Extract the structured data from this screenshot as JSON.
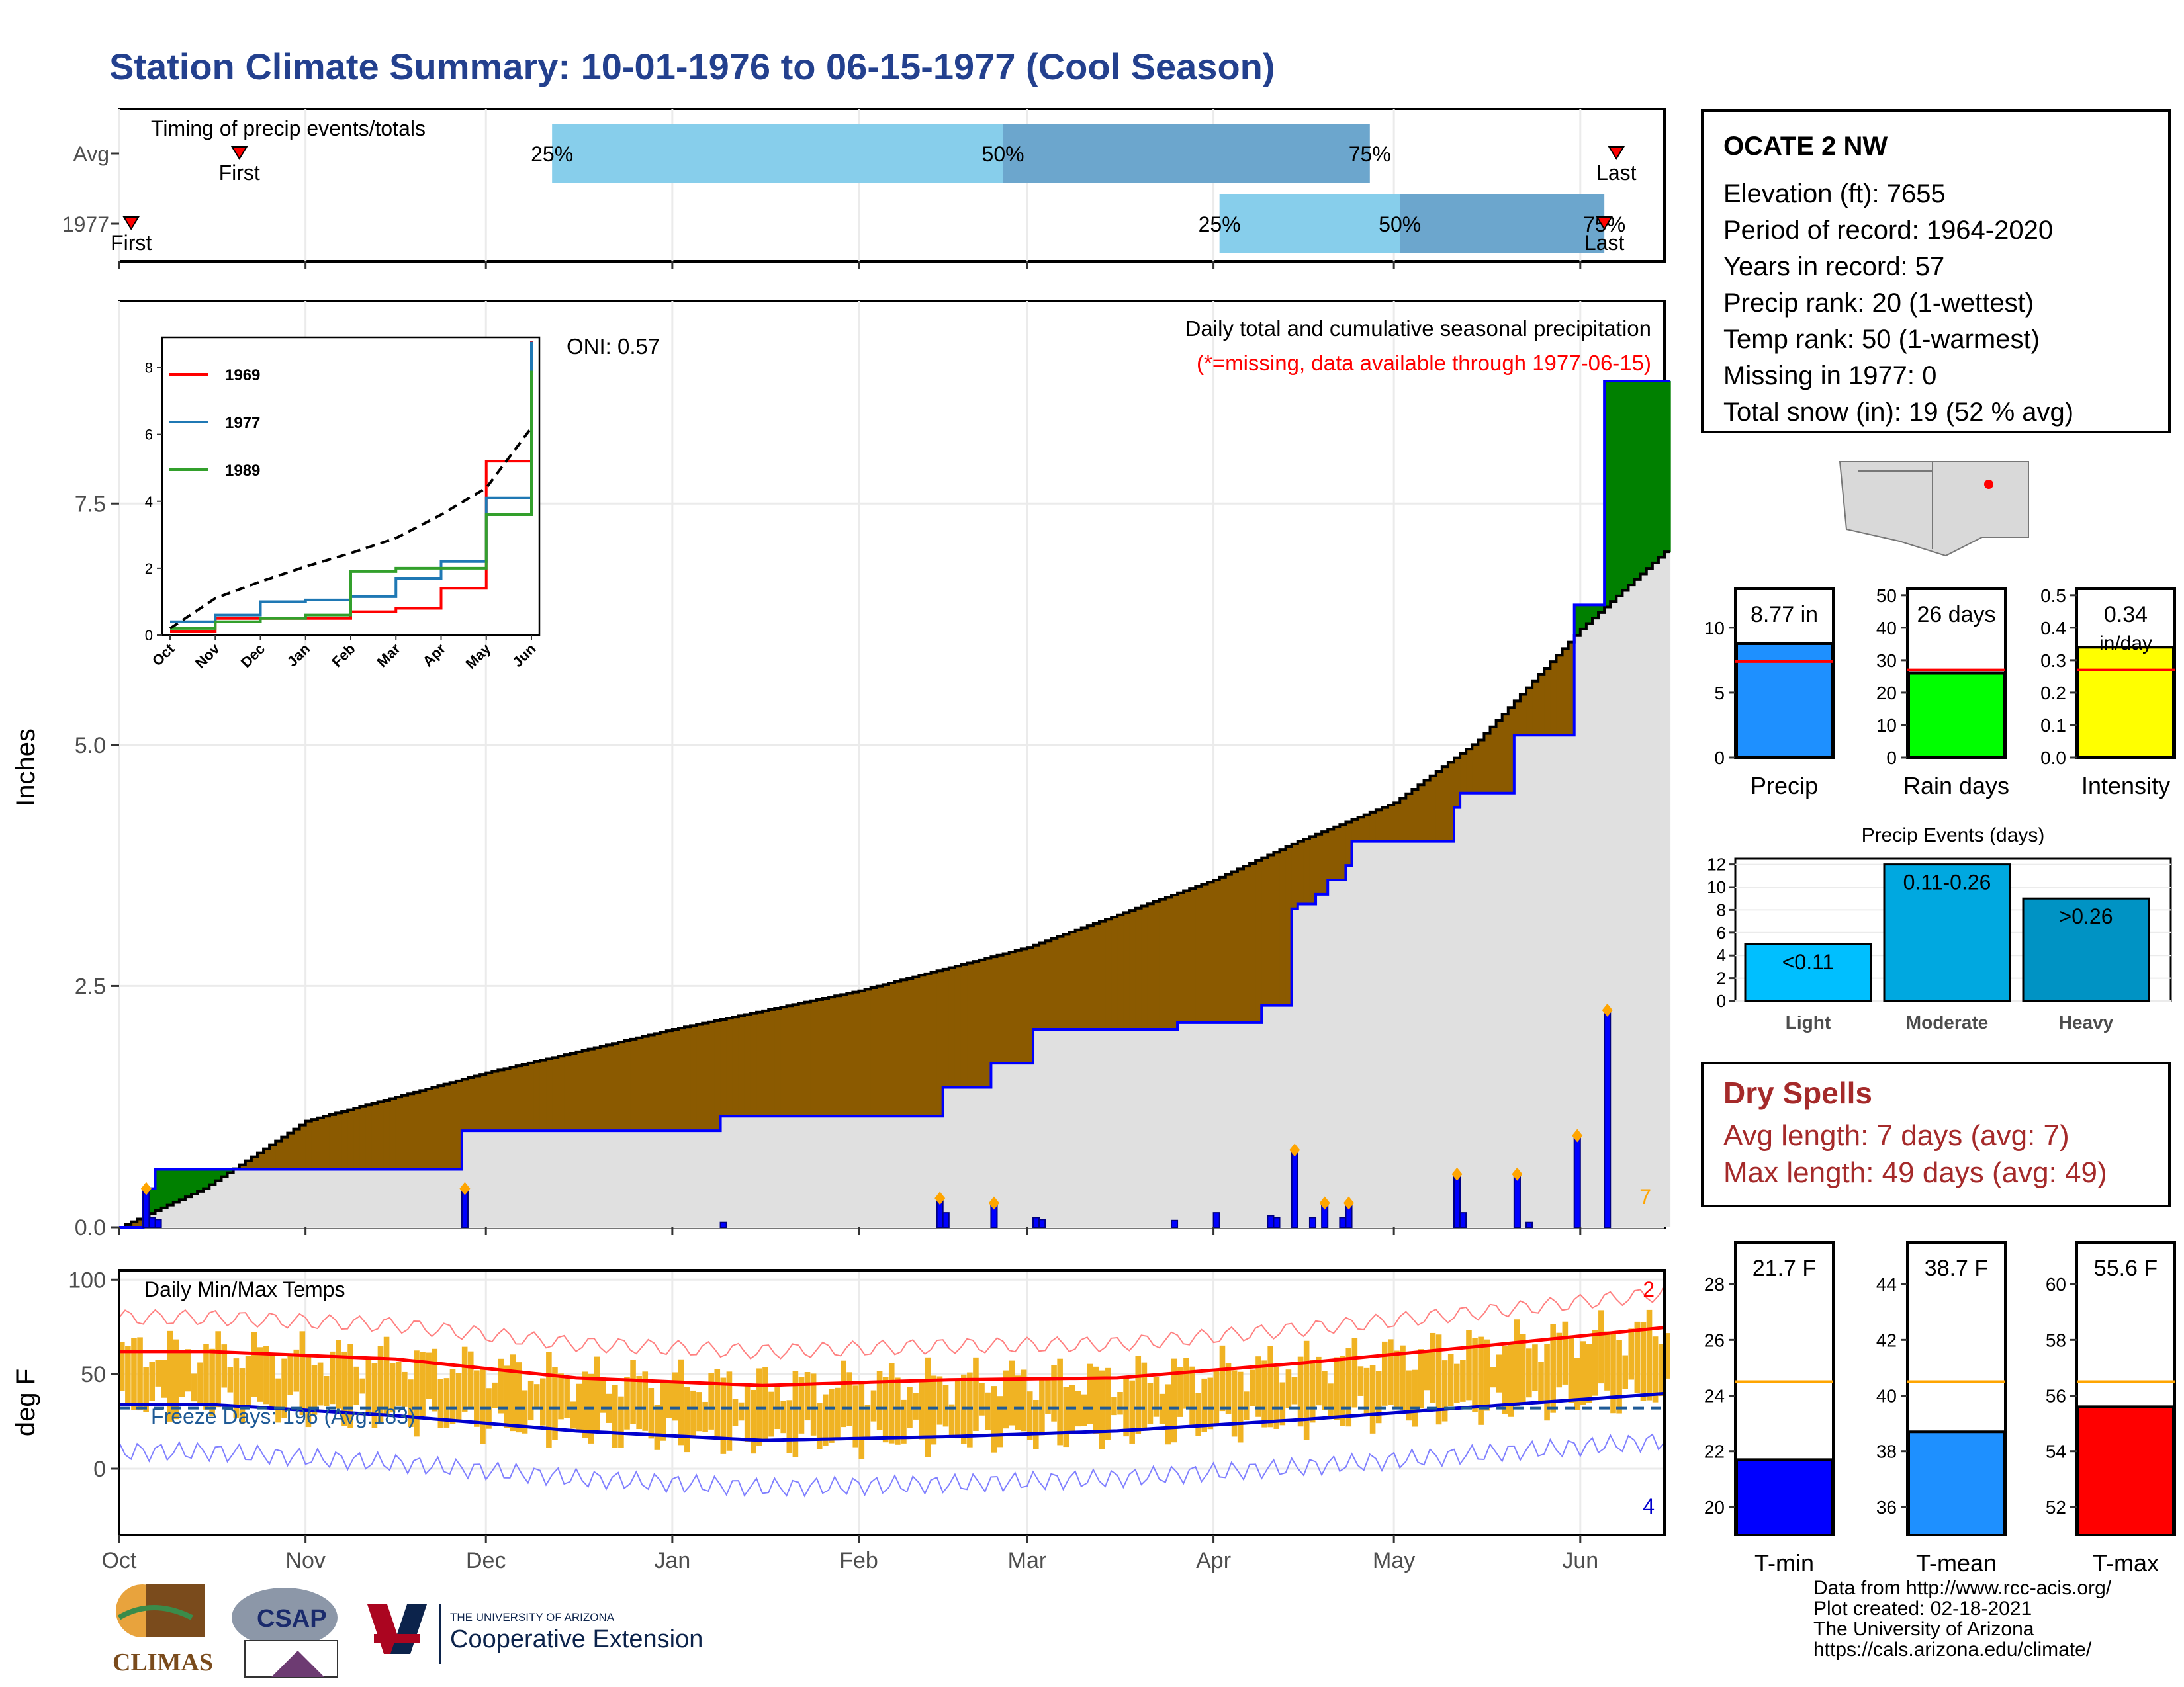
{
  "title": "Station Climate Summary: 10-01-1976 to 06-15-1977 (Cool Season)",
  "colors": {
    "title": "#23408e",
    "brown_fill": "#8b5a00",
    "green_fill": "#008000",
    "gray_fill": "#e0e0e0",
    "daily_bar": "#0000ff",
    "light_blue": "#87ceeb",
    "mid_blue": "#6ca6cd",
    "temp_bar": "#f0b323",
    "max_line": "#ff0000",
    "min_line": "#0000cd",
    "dry_text": "#a52a2a"
  },
  "timing": {
    "title": "Timing of precip events/totals",
    "rows": [
      {
        "label": "Avg",
        "first_label": "First",
        "last_label": "Last",
        "first": "Oct 21",
        "last": "Jun 07",
        "p25": "Dec 12",
        "p50": "Feb 25",
        "p75": "Apr 27",
        "p25_label": "25%",
        "p50_label": "50%",
        "p75_label": "75%"
      },
      {
        "label": "1977",
        "first_label": "First",
        "last_label": "Last",
        "first": "Oct 03",
        "last": "Jun 05",
        "p25": "Apr 02",
        "p50": "May 02",
        "p75": "Jun 05",
        "p25_label": "25%",
        "p50_label": "50%",
        "p75_label": "75%"
      }
    ]
  },
  "precip_panel": {
    "title": "Daily total and cumulative seasonal precipitation",
    "note": "(*=missing, data available through 1977-06-15)",
    "oni": "ONI: 0.57",
    "ylabel": "Inches",
    "yticks": [
      "0.0",
      "2.5",
      "5.0",
      "7.5"
    ],
    "corner_count": "7"
  },
  "inset": {
    "yticks": [
      "0",
      "2",
      "4",
      "6",
      "8"
    ],
    "xticks": [
      "Oct",
      "Nov",
      "Dec",
      "Jan",
      "Feb",
      "Mar",
      "Apr",
      "May",
      "Jun"
    ],
    "legend": [
      "1969",
      "1977",
      "1989"
    ]
  },
  "temp_panel": {
    "title": "Daily Min/Max Temps",
    "freeze": "Freeze Days: 196 (Avg:183)",
    "ylabel": "deg F",
    "yticks": [
      "0",
      "50",
      "100"
    ],
    "max_count": "2",
    "min_count": "4"
  },
  "months": [
    "Oct",
    "Nov",
    "Dec",
    "Jan",
    "Feb",
    "Mar",
    "Apr",
    "May",
    "Jun"
  ],
  "station": {
    "name": "OCATE 2 NW",
    "elevation": "Elevation (ft): 7655",
    "period": "Period of record: 1964-2020",
    "years": "Years in record: 57",
    "precip_rank": "Precip rank: 20 (1-wettest)",
    "temp_rank": "Temp rank: 50 (1-warmest)",
    "missing": "Missing in 1977: 0",
    "snow": "Total snow (in): 19 (52 % avg)"
  },
  "precip_bars": [
    {
      "label": "Precip",
      "value_label": "8.77 in",
      "yticks": [
        "0",
        "5",
        "10"
      ],
      "color": "#1e90ff"
    },
    {
      "label": "Rain days",
      "value_label": "26 days",
      "yticks": [
        "0",
        "10",
        "20",
        "30",
        "40",
        "50"
      ],
      "color": "#00ff00"
    },
    {
      "label": "Intensity",
      "value_label": "0.34 in/day",
      "yticks": [
        "0.0",
        "0.1",
        "0.2",
        "0.3",
        "0.4",
        "0.5"
      ],
      "color": "#ffff00"
    }
  ],
  "events": {
    "title": "Precip Events (days)",
    "yticks": [
      "0",
      "2",
      "4",
      "6",
      "8",
      "10",
      "12"
    ],
    "categories": [
      "Light",
      "Moderate",
      "Heavy"
    ],
    "bar_labels": [
      "<0.11",
      "0.11-0.26",
      ">0.26"
    ]
  },
  "dry_spells": {
    "title": "Dry Spells",
    "avg": "Avg length: 7 days (avg: 7)",
    "max": "Max length: 49 days (avg: 49)"
  },
  "temp_bars": [
    {
      "label": "T-min",
      "value_label": "21.7 F",
      "yticks": [
        "20",
        "22",
        "24",
        "26",
        "28"
      ],
      "color": "#0000ff"
    },
    {
      "label": "T-mean",
      "value_label": "38.7 F",
      "yticks": [
        "36",
        "38",
        "40",
        "42",
        "44"
      ],
      "color": "#1e90ff"
    },
    {
      "label": "T-max",
      "value_label": "55.6 F",
      "yticks": [
        "52",
        "54",
        "56",
        "58",
        "60"
      ],
      "color": "#ff0000"
    }
  ],
  "footer": [
    "Data from http://www.rcc-acis.org/",
    "Plot created: 02-18-2021",
    "The University of Arizona",
    "https://cals.arizona.edu/climate/"
  ],
  "logos": {
    "climas": "CLIMAS",
    "csap": "CSAP",
    "ua_line1": "THE UNIVERSITY OF ARIZONA",
    "ua_line2": "Cooperative Extension"
  },
  "chart_data": [
    {
      "type": "area",
      "title": "Daily total and cumulative seasonal precipitation",
      "ylabel": "Inches",
      "ylim": [
        0,
        9.6
      ],
      "x_range": [
        "1976-10-01",
        "1977-06-15"
      ],
      "series": [
        {
          "name": "cumulative 1977",
          "points": [
            [
              "1976-10-01",
              0
            ],
            [
              "1976-10-05",
              0.4
            ],
            [
              "1976-10-07",
              0.6
            ],
            [
              "1976-11-26",
              0.6
            ],
            [
              "1976-11-27",
              1.0
            ],
            [
              "1977-01-08",
              1.0
            ],
            [
              "1977-01-09",
              1.15
            ],
            [
              "1977-02-14",
              1.15
            ],
            [
              "1977-02-15",
              1.45
            ],
            [
              "1977-02-22",
              1.45
            ],
            [
              "1977-02-23",
              1.7
            ],
            [
              "1977-03-01",
              1.7
            ],
            [
              "1977-03-02",
              2.05
            ],
            [
              "1977-03-25",
              2.05
            ],
            [
              "1977-03-26",
              2.12
            ],
            [
              "1977-04-08",
              2.12
            ],
            [
              "1977-04-09",
              2.3
            ],
            [
              "1977-04-13",
              2.3
            ],
            [
              "1977-04-14",
              3.3
            ],
            [
              "1977-04-15",
              3.35
            ],
            [
              "1977-04-18",
              3.45
            ],
            [
              "1977-04-20",
              3.6
            ],
            [
              "1977-04-23",
              3.75
            ],
            [
              "1977-04-24",
              4.0
            ],
            [
              "1977-05-10",
              4.0
            ],
            [
              "1977-05-11",
              4.35
            ],
            [
              "1977-05-12",
              4.5
            ],
            [
              "1977-05-20",
              4.5
            ],
            [
              "1977-05-21",
              5.1
            ],
            [
              "1977-05-30",
              5.1
            ],
            [
              "1977-05-31",
              6.45
            ],
            [
              "1977-06-04",
              6.45
            ],
            [
              "1977-06-05",
              8.77
            ],
            [
              "1977-06-15",
              8.77
            ]
          ]
        },
        {
          "name": "average cumulative",
          "points": [
            [
              "1976-10-01",
              0
            ],
            [
              "1976-10-15",
              0.4
            ],
            [
              "1976-11-01",
              1.1
            ],
            [
              "1976-12-01",
              1.6
            ],
            [
              "1977-01-01",
              2.05
            ],
            [
              "1977-02-01",
              2.45
            ],
            [
              "1977-03-01",
              2.9
            ],
            [
              "1977-04-01",
              3.6
            ],
            [
              "1977-04-15",
              4.0
            ],
            [
              "1977-05-01",
              4.4
            ],
            [
              "1977-05-15",
              5.05
            ],
            [
              "1977-06-01",
              6.2
            ],
            [
              "1977-06-15",
              7.0
            ]
          ]
        }
      ],
      "daily_bars": [
        [
          "1976-10-05",
          0.4
        ],
        [
          "1976-10-06",
          0.1
        ],
        [
          "1976-10-07",
          0.08
        ],
        [
          "1976-11-27",
          0.4
        ],
        [
          "1977-01-09",
          0.05
        ],
        [
          "1977-02-14",
          0.3
        ],
        [
          "1977-02-15",
          0.15
        ],
        [
          "1977-02-23",
          0.25
        ],
        [
          "1977-03-02",
          0.1
        ],
        [
          "1977-03-03",
          0.08
        ],
        [
          "1977-03-25",
          0.07
        ],
        [
          "1977-04-01",
          0.15
        ],
        [
          "1977-04-10",
          0.12
        ],
        [
          "1977-04-11",
          0.1
        ],
        [
          "1977-04-14",
          0.8
        ],
        [
          "1977-04-17",
          0.1
        ],
        [
          "1977-04-19",
          0.25
        ],
        [
          "1977-04-22",
          0.1
        ],
        [
          "1977-04-23",
          0.25
        ],
        [
          "1977-05-11",
          0.55
        ],
        [
          "1977-05-12",
          0.15
        ],
        [
          "1977-05-21",
          0.55
        ],
        [
          "1977-05-23",
          0.05
        ],
        [
          "1977-05-31",
          0.95
        ],
        [
          "1977-06-05",
          2.25
        ]
      ]
    },
    {
      "type": "line",
      "title": "",
      "ylim": [
        0,
        8.9
      ],
      "x": [
        "Oct",
        "Nov",
        "Dec",
        "Jan",
        "Feb",
        "Mar",
        "Apr",
        "May",
        "Jun"
      ],
      "series": [
        {
          "name": "1969",
          "values": [
            0.1,
            0.5,
            0.5,
            0.5,
            0.7,
            0.8,
            1.4,
            5.2,
            8.8
          ]
        },
        {
          "name": "1977",
          "values": [
            0.4,
            0.6,
            1.0,
            1.05,
            1.15,
            1.7,
            2.2,
            4.1,
            8.77
          ]
        },
        {
          "name": "1989",
          "values": [
            0.2,
            0.4,
            0.5,
            0.6,
            1.9,
            2.0,
            2.0,
            3.6,
            7.9
          ]
        },
        {
          "values": [
            0.2,
            1.1,
            1.6,
            2.05,
            2.45,
            2.9,
            3.6,
            4.4,
            6.2
          ]
        }
      ]
    },
    {
      "type": "bar",
      "title": "Daily Min/Max Temps",
      "ylabel": "deg F",
      "ylim": [
        -35,
        105
      ],
      "x": [
        "Oct",
        "Nov",
        "Dec",
        "Jan",
        "Feb",
        "Mar",
        "Apr",
        "May",
        "Jun"
      ],
      "series": [
        {
          "values": [
            62,
            58,
            48,
            44,
            47,
            48,
            56,
            65,
            75
          ]
        },
        {
          "values": [
            34,
            28,
            20,
            15,
            17,
            20,
            26,
            33,
            40
          ]
        }
      ]
    },
    {
      "type": "bar",
      "categories": [
        "Precip",
        "Rain days",
        "Intensity"
      ],
      "values": [
        8.77,
        26,
        0.34
      ],
      "averages": [
        7.4,
        27,
        0.27
      ],
      "ylim_each": [
        [
          0,
          13
        ],
        [
          0,
          52
        ],
        [
          0,
          0.52
        ]
      ]
    },
    {
      "type": "bar",
      "title": "Precip Events (days)",
      "categories": [
        "Light",
        "Moderate",
        "Heavy"
      ],
      "values": [
        5,
        12,
        9
      ],
      "ylim": [
        0,
        12.5
      ]
    },
    {
      "type": "bar",
      "categories": [
        "T-min",
        "T-mean",
        "T-max"
      ],
      "values": [
        21.7,
        38.7,
        55.6
      ],
      "averages": [
        24.5,
        40.5,
        56.5
      ],
      "ylim_each": [
        [
          19,
          29.5
        ],
        [
          35,
          45.5
        ],
        [
          51,
          61.5
        ]
      ]
    }
  ]
}
